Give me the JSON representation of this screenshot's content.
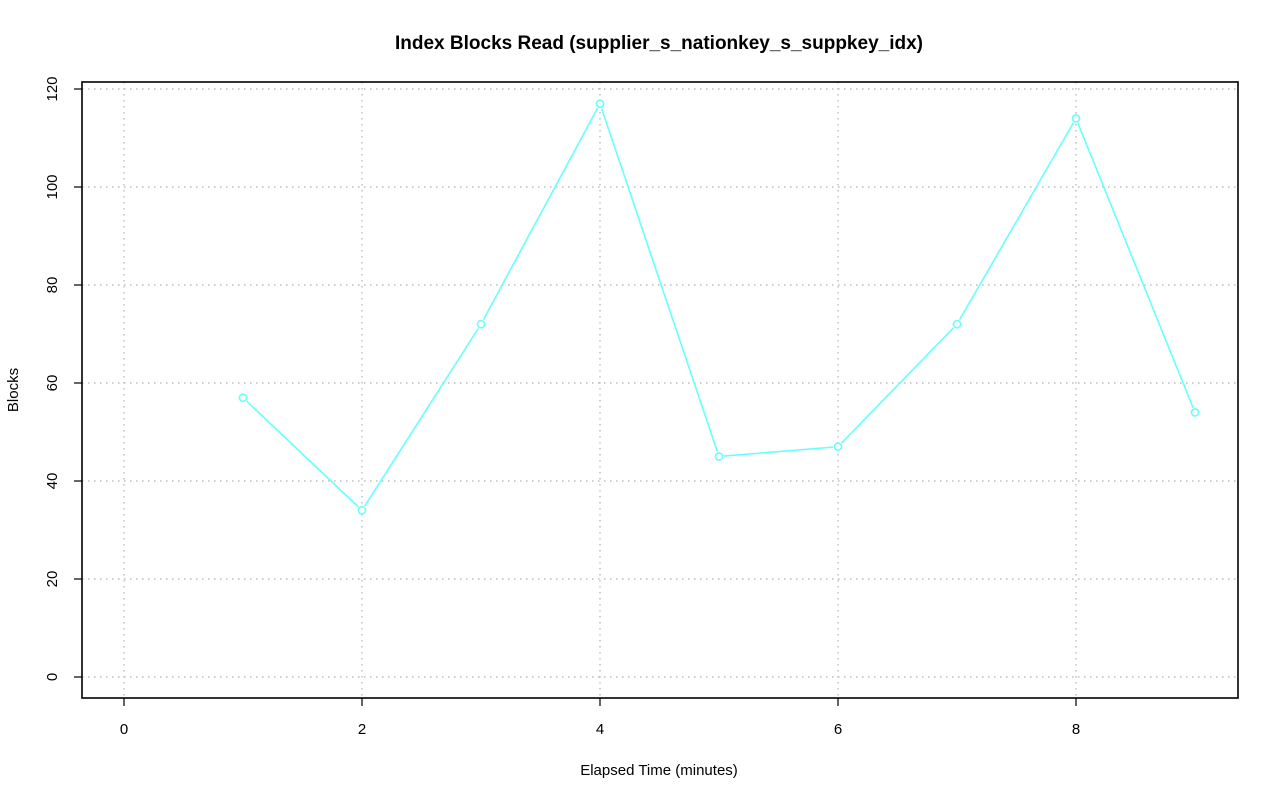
{
  "chart_data": {
    "type": "line",
    "title": "Index Blocks Read (supplier_s_nationkey_s_suppkey_idx)",
    "xlabel": "Elapsed Time (minutes)",
    "ylabel": "Blocks",
    "xlim": [
      0,
      9
    ],
    "ylim": [
      0,
      120
    ],
    "x_ticks": [
      0,
      2,
      4,
      6,
      8
    ],
    "y_ticks": [
      0,
      20,
      40,
      60,
      80,
      100,
      120
    ],
    "grid": true,
    "series": [
      {
        "color": "#66ffff",
        "marker": "circle",
        "x": [
          1,
          2,
          3,
          4,
          5,
          6,
          7,
          8,
          9
        ],
        "y": [
          57,
          34,
          72,
          117,
          45,
          47,
          72,
          114,
          54
        ]
      }
    ]
  }
}
